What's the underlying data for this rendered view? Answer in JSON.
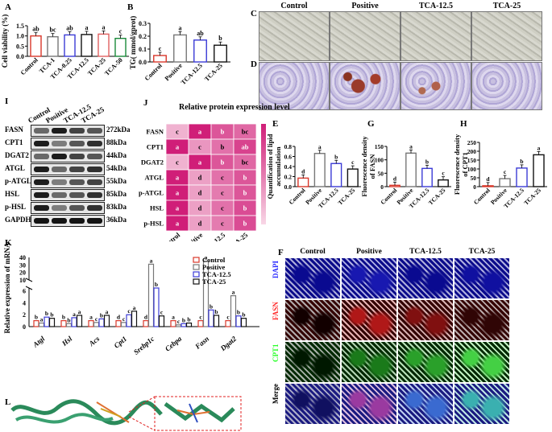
{
  "panels": {
    "A": "A",
    "B": "B",
    "C": "C",
    "D": "D",
    "E": "E",
    "F": "F",
    "G": "G",
    "H": "H",
    "I": "I",
    "J": "J",
    "K": "K",
    "L": "L"
  },
  "colors": {
    "control": "#d9372a",
    "positive": "#777777",
    "tca125": "#3b3bd6",
    "tca25": "#111111",
    "tca50": "#1a8a3a",
    "tca1": "#e06060",
    "tca025": "#4a7fd0"
  },
  "panelA": {
    "ylabel": "Cell viability (%)",
    "ticks": [
      "0.0",
      "0.5",
      "1.0",
      "1.5"
    ],
    "categories": [
      "Control",
      "TCA-1",
      "TCA-0.25",
      "TCA-12.5",
      "TCA-25",
      "TCA-50"
    ],
    "values": [
      1.0,
      0.96,
      1.05,
      1.07,
      1.09,
      0.88
    ],
    "letters": [
      "ab",
      "bc",
      "ab",
      "a",
      "a",
      "c"
    ]
  },
  "panelB": {
    "ylabel": "TG( mmol/gprot)",
    "ticks": [
      "0.0",
      "0.1",
      "0.2",
      "0.3"
    ],
    "categories": [
      "Control",
      "Positive",
      "TCA-12.5",
      "TCA-25"
    ],
    "values": [
      0.05,
      0.21,
      0.17,
      0.13
    ],
    "letters": [
      "c",
      "a",
      "ab",
      "b"
    ]
  },
  "panelCD": {
    "columns": [
      "Control",
      "Positive",
      "TCA-12.5",
      "TCA-25"
    ]
  },
  "panelI": {
    "headers": [
      "Control",
      "Positive",
      "TCA-12.5",
      "TCA-25"
    ],
    "proteins": [
      "FASN",
      "CPT1",
      "DGAT2",
      "ATGL",
      "p-ATGL",
      "HSL",
      "p-HSL",
      "GAPDH"
    ],
    "sizes": [
      "272kDa",
      "88kDa",
      "44kDa",
      "54kDa",
      "55kDa",
      "85kDa",
      "83kDa",
      "36kDa"
    ]
  },
  "panelJ": {
    "title": "Relative protein expression level",
    "rows": [
      "FASN",
      "CPT1",
      "DGAT2",
      "ATGL",
      "p-ATGL",
      "HSL",
      "p-HSL"
    ],
    "columns": [
      "Control",
      "Positive",
      "TCA-12.5",
      "TCA-25"
    ],
    "letters": [
      [
        "c",
        "a",
        "b",
        "bc"
      ],
      [
        "a",
        "c",
        "b",
        "ab"
      ],
      [
        "c",
        "a",
        "b",
        "bc"
      ],
      [
        "a",
        "d",
        "c",
        "b"
      ],
      [
        "a",
        "d",
        "c",
        "b"
      ],
      [
        "a",
        "d",
        "c",
        "b"
      ],
      [
        "a",
        "d",
        "c",
        "b"
      ]
    ],
    "values": [
      [
        0.2,
        1.0,
        0.7,
        0.6
      ],
      [
        1.0,
        0.35,
        0.55,
        0.8
      ],
      [
        0.2,
        1.0,
        0.7,
        0.6
      ],
      [
        1.0,
        0.3,
        0.55,
        0.7
      ],
      [
        1.0,
        0.3,
        0.5,
        0.7
      ],
      [
        1.0,
        0.3,
        0.55,
        0.75
      ],
      [
        1.0,
        0.3,
        0.5,
        0.75
      ]
    ],
    "scale": [
      "1.0",
      "0.8",
      "0.6",
      "0.4"
    ]
  },
  "panelE": {
    "ylabel": "Quantification of lipid accumulation",
    "ticks": [
      "0.0",
      "0.2",
      "0.4",
      "0.6",
      "0.8"
    ],
    "categories": [
      "Control",
      "Positive",
      "TCA-12.5",
      "TCA-25"
    ],
    "values": [
      0.17,
      0.66,
      0.46,
      0.35
    ],
    "letters": [
      "d",
      "a",
      "b",
      "c"
    ]
  },
  "panelG": {
    "ylabel": "Fluorescence density of FASN",
    "ticks": [
      "0",
      "50",
      "100",
      "150"
    ],
    "categories": [
      "Control",
      "Positive",
      "TCA-12.5",
      "TCA-25"
    ],
    "values": [
      5,
      125,
      68,
      25
    ],
    "letters": [
      "d",
      "a",
      "b",
      "c"
    ]
  },
  "panelH": {
    "ylabel": "Fluorescence density of CPT1",
    "ticks": [
      "0",
      "50",
      "100",
      "150",
      "200",
      "250"
    ],
    "categories": [
      "Control",
      "Positive",
      "TCA-12.5",
      "TCA-25"
    ],
    "values": [
      5,
      45,
      105,
      180
    ],
    "letters": [
      "d",
      "c",
      "b",
      "a"
    ]
  },
  "panelK": {
    "ylabel": "Relative expression of mRNA",
    "ticks_low": [
      "0",
      "2",
      "4",
      "6"
    ],
    "ticks_high": [
      "10",
      "20",
      "30",
      "40"
    ],
    "genes": [
      "Atgl",
      "Hsl",
      "Acs",
      "Cpt1",
      "Srebp1c",
      "Cebpa",
      "Fasn",
      "Dgat2"
    ],
    "legend": [
      "Control",
      "Positive",
      "TCA-12.5",
      "TCA-25"
    ],
    "series": [
      {
        "name": "Control",
        "values": [
          1,
          1,
          1,
          1,
          1,
          1,
          1,
          1
        ]
      },
      {
        "name": "Positive",
        "values": [
          0.6,
          0.5,
          0.7,
          0.7,
          31,
          0.3,
          35,
          5.2
        ]
      },
      {
        "name": "TCA-12.5",
        "values": [
          1.6,
          1.5,
          1.3,
          2.0,
          6.5,
          0.5,
          2.8,
          1.8
        ]
      },
      {
        "name": "TCA-25",
        "values": [
          1.4,
          1.9,
          1.9,
          2.6,
          1.8,
          0.6,
          1.9,
          1.4
        ]
      }
    ],
    "letters": [
      [
        "b",
        "a",
        "b",
        "b"
      ],
      [
        "b",
        "b",
        "a",
        "a"
      ],
      [
        "a",
        "c",
        "b",
        "a"
      ],
      [
        "d",
        "c",
        "c",
        "a"
      ],
      [
        "d",
        "a",
        "b",
        "c"
      ],
      [
        "a",
        "c",
        "b",
        "b"
      ],
      [
        "c",
        "a",
        "b",
        "b"
      ],
      [
        "c",
        "a",
        "b",
        "b"
      ]
    ]
  },
  "panelF": {
    "columns": [
      "Control",
      "Positive",
      "TCA-12.5",
      "TCA-25"
    ],
    "rows": [
      "DAPI",
      "FASN",
      "CPT1",
      "Merge"
    ]
  }
}
